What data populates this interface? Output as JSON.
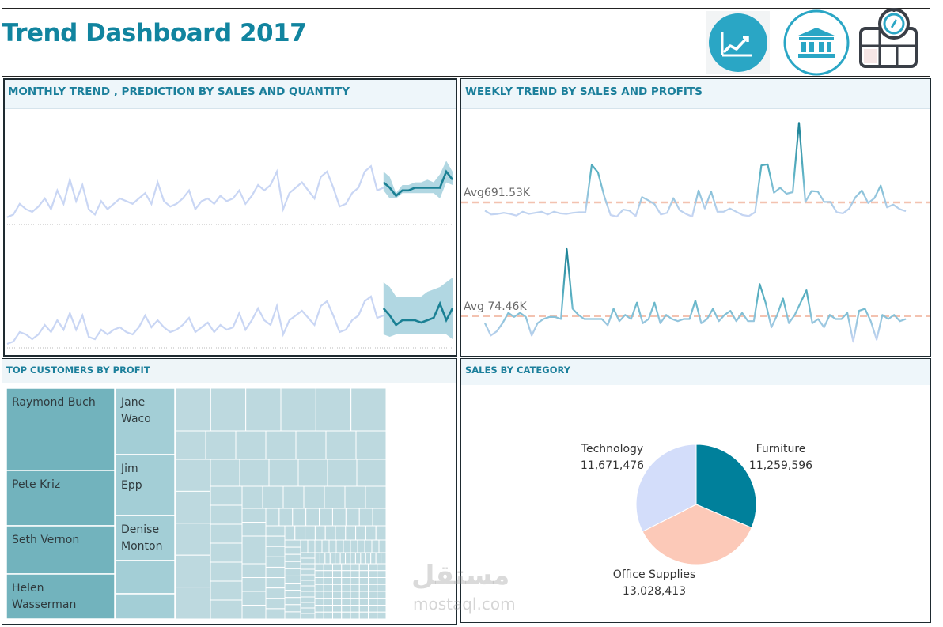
{
  "title": "Trend Dashboard 2017",
  "header_icons": [
    "trend-chart-icon",
    "bank-building-icon",
    "map-compass-icon"
  ],
  "colors": {
    "accent": "#11849f",
    "trend_dark": "#1a8094",
    "trend_light": "#c9d6f4",
    "band": "#a8d3df",
    "avg_line": "#f3c2b0",
    "treemap_dark": "#72b3bd",
    "treemap_mid": "#a3ced6",
    "treemap_light": "#bdd9df",
    "pie_furniture": "#00809b",
    "pie_office": "#fcc9b8",
    "pie_technology": "#d3ddfa"
  },
  "panels": {
    "monthly": "MONTHLY TREND , PREDICTION BY SALES AND QUANTITY",
    "weekly": "WEEKLY TREND BY SALES AND PROFITS",
    "customers": "TOP CUSTOMERS BY PROFIT",
    "category": "SALES BY CATEGORY"
  },
  "chart_data": [
    {
      "type": "line",
      "name": "monthly-trend",
      "series": [
        {
          "values": [
            3,
            4,
            8,
            6,
            5,
            7,
            10,
            6,
            13,
            8,
            17,
            9,
            15,
            6,
            4,
            9,
            6,
            8,
            10,
            9,
            8,
            10,
            12,
            8,
            16,
            9,
            7,
            8,
            10,
            13,
            6,
            9,
            10,
            8,
            11,
            9,
            10,
            13,
            8,
            11,
            15,
            13,
            15,
            20,
            6,
            12,
            14,
            16,
            13,
            10,
            18,
            20,
            14,
            7,
            8,
            12,
            14,
            20,
            22,
            13,
            14
          ],
          "forecast": [
            [
              20,
              18,
              12,
              15,
              15,
              16,
              16,
              17,
              16,
              19,
              24,
              20
            ],
            [
              13,
              10,
              10,
              12,
              12,
              12,
              12,
              12,
              12,
              10,
              16,
              15
            ],
            [
              16,
              14,
              11,
              13,
              13,
              14,
              14,
              14,
              14,
              14,
              20,
              17
            ]
          ],
          "ylim": [
            0,
            40
          ]
        },
        {
          "values": [
            2,
            3,
            7,
            6,
            4,
            6,
            10,
            7,
            12,
            8,
            15,
            8,
            14,
            5,
            4,
            8,
            6,
            8,
            9,
            7,
            6,
            9,
            14,
            9,
            12,
            9,
            7,
            8,
            10,
            13,
            7,
            9,
            11,
            7,
            10,
            8,
            9,
            15,
            8,
            12,
            17,
            12,
            10,
            18,
            6,
            12,
            14,
            16,
            13,
            10,
            18,
            20,
            14,
            7,
            8,
            12,
            14,
            20,
            22,
            13,
            14
          ],
          "forecast": [
            [
              28,
              26,
              22,
              22,
              22,
              22,
              22,
              24,
              25,
              26,
              28,
              30
            ],
            [
              6,
              5,
              6,
              6,
              6,
              6,
              6,
              6,
              6,
              6,
              6,
              4
            ],
            [
              17,
              14,
              10,
              12,
              12,
              12,
              11,
              12,
              13,
              19,
              12,
              17
            ]
          ],
          "ylim": [
            0,
            45
          ]
        }
      ]
    },
    {
      "type": "line",
      "name": "weekly-trend",
      "series": [
        {
          "annotation": "Avg691.53K",
          "average": 691.53,
          "values": [
            540,
            470,
            480,
            500,
            480,
            450,
            520,
            480,
            500,
            520,
            470,
            520,
            490,
            480,
            500,
            510,
            510,
            1380,
            1240,
            800,
            460,
            430,
            560,
            540,
            440,
            790,
            730,
            660,
            470,
            500,
            770,
            550,
            480,
            430,
            910,
            580,
            890,
            520,
            520,
            580,
            520,
            460,
            440,
            510,
            1370,
            1390,
            870,
            960,
            850,
            880,
            2150,
            700,
            900,
            890,
            700,
            700,
            510,
            490,
            580,
            790,
            910,
            680,
            770,
            1000,
            600,
            650,
            570,
            530
          ],
          "ylim": [
            300,
            2300
          ]
        },
        {
          "annotation": "Avg 74.46K",
          "average": 74.46,
          "values": [
            40,
            -20,
            0,
            40,
            90,
            70,
            90,
            70,
            -20,
            40,
            60,
            70,
            70,
            60,
            400,
            110,
            80,
            60,
            60,
            60,
            60,
            30,
            110,
            50,
            80,
            60,
            140,
            40,
            60,
            140,
            40,
            80,
            60,
            50,
            60,
            60,
            150,
            40,
            60,
            110,
            50,
            80,
            100,
            50,
            90,
            50,
            50,
            230,
            140,
            20,
            80,
            160,
            40,
            80,
            140,
            200,
            40,
            60,
            20,
            80,
            60,
            60,
            90,
            -50,
            100,
            110,
            50,
            -40,
            80,
            60,
            80,
            50,
            60
          ],
          "ylim": [
            -80,
            450
          ]
        }
      ]
    },
    {
      "type": "treemap",
      "name": "top-customers-by-profit",
      "labeled": [
        "Raymond Buch",
        "Pete Kriz",
        "Seth Vernon",
        "Helen Wasserman",
        "Jane Waco",
        "Jim Epp",
        "Denise Monton"
      ]
    },
    {
      "type": "pie",
      "name": "sales-by-category",
      "slices": [
        {
          "label": "Furniture",
          "value": 11259596,
          "display": "11,259,596",
          "color": "#00809b"
        },
        {
          "label": "Office Supplies",
          "value": 13028413,
          "display": "13,028,413",
          "color": "#fcc9b8"
        },
        {
          "label": "Technology",
          "value": 11671476,
          "display": "11,671,476",
          "color": "#d3ddfa"
        }
      ]
    }
  ],
  "watermark": {
    "arabic": "مستقل",
    "latin": "mostaql.com"
  }
}
